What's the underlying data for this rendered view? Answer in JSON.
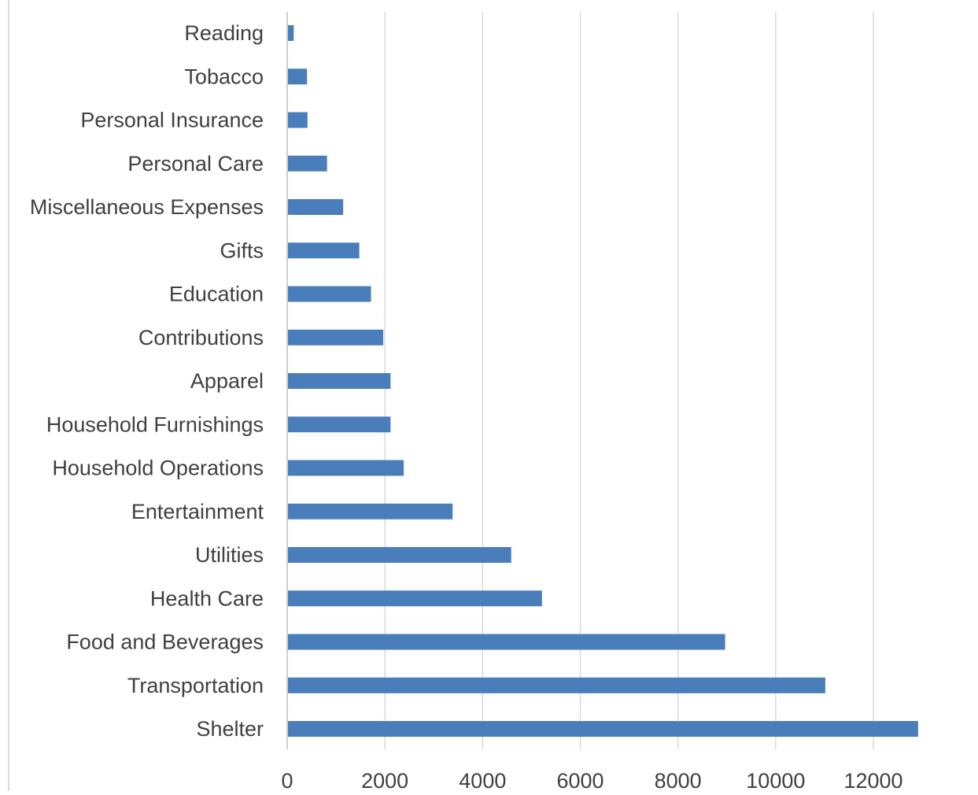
{
  "chart_data": {
    "type": "bar",
    "orientation": "horizontal",
    "title": "",
    "xlabel": "",
    "ylabel": "",
    "categories": [
      "Reading",
      "Tobacco",
      "Personal Insurance",
      "Personal Care",
      "Miscellaneous Expenses",
      "Gifts",
      "Education",
      "Contributions",
      "Apparel",
      "Household Furnishings",
      "Household Operations",
      "Entertainment",
      "Utilities",
      "Health Care",
      "Food and Beverages",
      "Transportation",
      "Shelter"
    ],
    "values": [
      118,
      390,
      400,
      800,
      1130,
      1460,
      1700,
      1950,
      2100,
      2100,
      2370,
      3370,
      4570,
      5200,
      8950,
      11000,
      12900
    ],
    "xlim": [
      0,
      12900
    ],
    "xticks": [
      "0",
      "2000",
      "4000",
      "6000",
      "8000",
      "10000",
      "12000"
    ],
    "xtick_values": [
      0,
      2000,
      4000,
      6000,
      8000,
      10000,
      12000
    ],
    "grid": "vertical",
    "legend": "none",
    "bar_color": "#4a7ebb"
  }
}
